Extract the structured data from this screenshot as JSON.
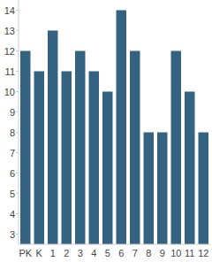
{
  "chart_data": {
    "type": "bar",
    "categories": [
      "PK",
      "K",
      "1",
      "2",
      "3",
      "4",
      "5",
      "6",
      "7",
      "8",
      "9",
      "10",
      "11",
      "12"
    ],
    "values": [
      12,
      11,
      13,
      11,
      12,
      11,
      10,
      14,
      12,
      8,
      8,
      12,
      10,
      8
    ],
    "color": "#346281",
    "ylim": [
      2.5,
      14.5
    ],
    "yticks": [
      3,
      4,
      5,
      6,
      7,
      8,
      9,
      10,
      11,
      12,
      13,
      14
    ],
    "grid": false
  }
}
